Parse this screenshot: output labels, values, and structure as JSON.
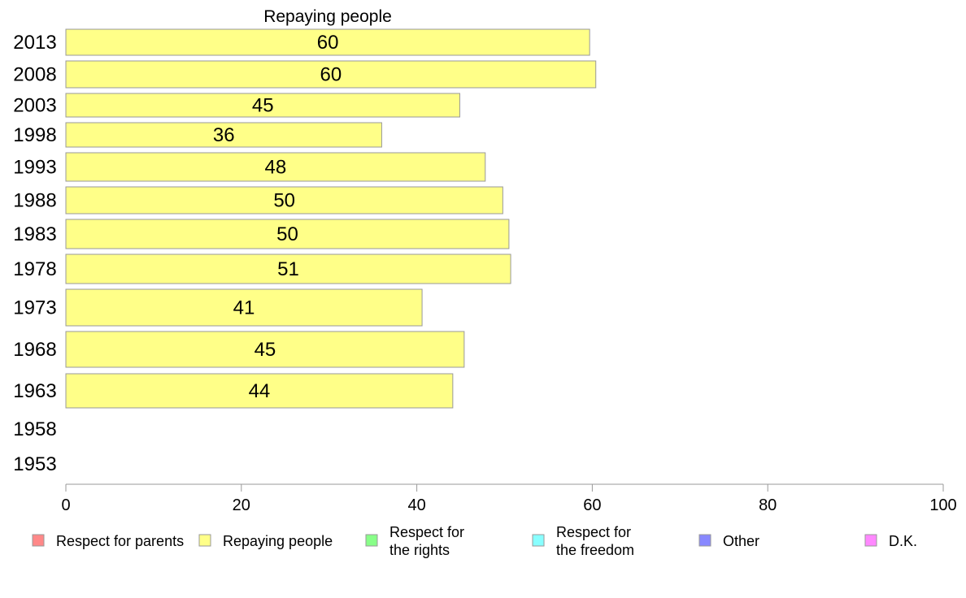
{
  "chart_data": {
    "type": "bar",
    "orientation": "horizontal",
    "title": "Repaying people",
    "categories": [
      "2013",
      "2008",
      "2003",
      "1998",
      "1993",
      "1988",
      "1983",
      "1978",
      "1973",
      "1968",
      "1963",
      "1958",
      "1953"
    ],
    "series": [
      {
        "name": "Repaying people",
        "color": "#ffff88",
        "values": [
          59.7,
          60.4,
          44.9,
          36.0,
          47.8,
          49.8,
          50.5,
          50.7,
          40.6,
          45.4,
          44.1,
          null,
          null
        ],
        "labels": [
          "60",
          "60",
          "45",
          "36",
          "48",
          "50",
          "50",
          "51",
          "41",
          "45",
          "44",
          "",
          ""
        ]
      }
    ],
    "xlim": [
      0,
      100
    ],
    "xticks": [
      "0",
      "20",
      "40",
      "60",
      "80",
      "100"
    ],
    "grid": false,
    "legend_position": "bottom",
    "legend": [
      {
        "lines": [
          "Respect for parents"
        ],
        "color": "#ff8888"
      },
      {
        "lines": [
          "Repaying people"
        ],
        "color": "#ffff88"
      },
      {
        "lines": [
          "Respect for",
          "the rights"
        ],
        "color": "#88ff88"
      },
      {
        "lines": [
          "Respect for",
          "the freedom"
        ],
        "color": "#88ffff"
      },
      {
        "lines": [
          "Other"
        ],
        "color": "#8888ff"
      },
      {
        "lines": [
          "D.K."
        ],
        "color": "#ff88ff"
      }
    ]
  }
}
